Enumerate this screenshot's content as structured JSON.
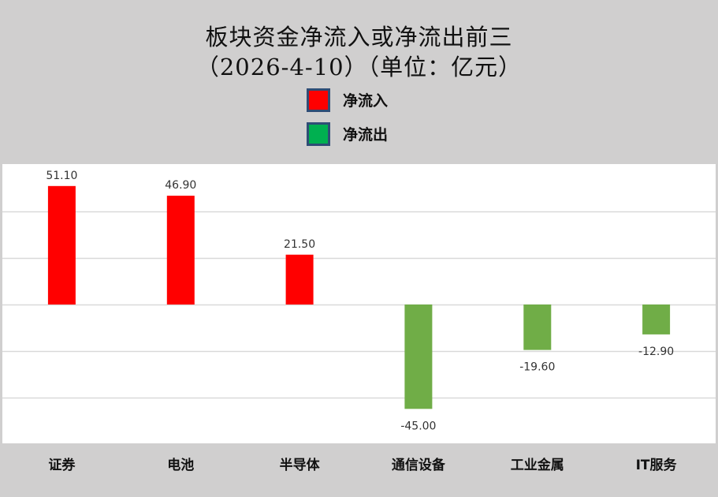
{
  "chart_data": {
    "type": "bar",
    "title": "板块资金净流入或净流出前三",
    "subtitle": "（2026-4-10）（单位：亿元）",
    "categories": [
      "证券",
      "电池",
      "半导体",
      "通信设备",
      "工业金属",
      "IT服务"
    ],
    "values": [
      51.1,
      46.9,
      21.5,
      -45.0,
      -19.6,
      -12.9
    ],
    "value_labels": [
      "51.10",
      "46.90",
      "21.50",
      "-45.00",
      "-19.60",
      "-12.90"
    ],
    "legend": [
      {
        "name": "净流入",
        "color": "#ff0000"
      },
      {
        "name": "净流出",
        "color": "#00b050"
      }
    ],
    "bar_colors": {
      "positive": "#ff0000",
      "negative": "#70ad47"
    },
    "ylim": [
      -60,
      60
    ],
    "gridlines": [
      -40,
      -20,
      0,
      20,
      40
    ],
    "grid": true,
    "legend_position": "top-center",
    "xlabel": "",
    "ylabel": ""
  }
}
